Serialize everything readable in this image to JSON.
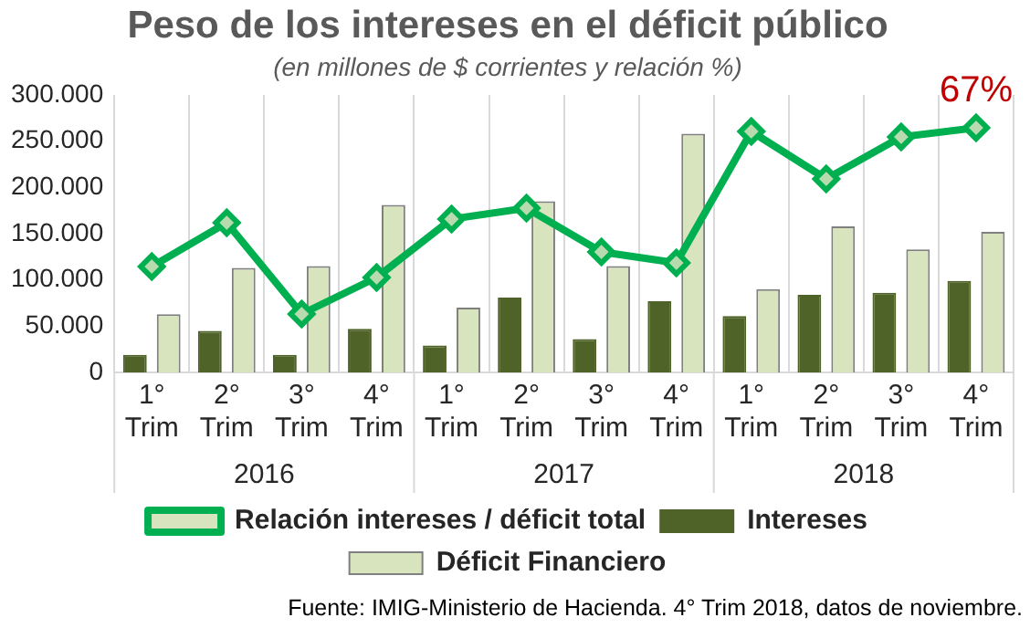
{
  "chart_data": {
    "type": "bar",
    "title": "Peso de los intereses en el déficit público",
    "subtitle": "(en millones de $ corrientes y relación %)",
    "categories": [
      "1° Trim",
      "2° Trim",
      "3° Trim",
      "4° Trim",
      "1° Trim",
      "2° Trim",
      "3° Trim",
      "4° Trim",
      "1° Trim",
      "2° Trim",
      "3° Trim",
      "4° Trim"
    ],
    "series": [
      {
        "name": "Intereses",
        "color": "#4f6228",
        "values": [
          19000,
          45000,
          19000,
          47000,
          29000,
          81000,
          36000,
          77000,
          61000,
          84000,
          86000,
          99000
        ]
      },
      {
        "name": "Déficit Financiero",
        "color": "#d7e4bd",
        "values": [
          63000,
          113000,
          115000,
          181000,
          70000,
          185000,
          115000,
          258000,
          90000,
          158000,
          133000,
          152000
        ]
      },
      {
        "name": "Relación intereses / déficit total",
        "type": "line",
        "axis": "y2",
        "color": "#00b050",
        "marker": "diamond",
        "values": [
          29,
          41,
          16,
          26,
          42,
          45,
          33,
          30,
          66,
          53,
          64.5,
          67
        ],
        "value_labels": [
          null,
          null,
          null,
          null,
          null,
          null,
          null,
          null,
          null,
          null,
          null,
          "67%"
        ]
      }
    ],
    "ylim": [
      0,
      300000
    ],
    "yticks": [
      {
        "value": 0,
        "label": "0"
      },
      {
        "value": 50000,
        "label": "50.000"
      },
      {
        "value": 100000,
        "label": "100.000"
      },
      {
        "value": 150000,
        "label": "150.000"
      },
      {
        "value": 200000,
        "label": "200.000"
      },
      {
        "value": 250000,
        "label": "250.000"
      },
      {
        "value": 300000,
        "label": "300.000"
      }
    ],
    "y2lim": [
      0,
      76
    ],
    "grid": "x",
    "legend": "bottom",
    "annotations": [
      "2016",
      "2017",
      "2018",
      "Fuente: IMIG-Ministerio de Hacienda. 4° Trim 2018, datos de noviembre."
    ]
  }
}
